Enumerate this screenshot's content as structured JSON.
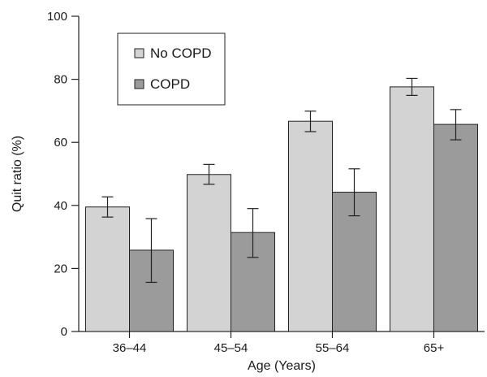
{
  "chart_data": {
    "type": "bar",
    "title": "",
    "xlabel": "Age (Years)",
    "ylabel": "Quit ratio (%)",
    "categories": [
      "36–44",
      "45–54",
      "55–64",
      "65+"
    ],
    "ylim": [
      0,
      100
    ],
    "yticks": [
      0,
      20,
      40,
      60,
      80,
      100
    ],
    "grid": false,
    "legend_position": "top-left",
    "series": [
      {
        "name": "No COPD",
        "color": "#d3d3d3",
        "values": [
          39.5,
          49.8,
          66.7,
          77.6
        ],
        "error_low": [
          36.3,
          46.7,
          63.4,
          74.9
        ],
        "error_high": [
          42.7,
          53.0,
          69.9,
          80.3
        ]
      },
      {
        "name": "COPD",
        "color": "#9b9b9b",
        "values": [
          25.8,
          31.4,
          44.2,
          65.7
        ],
        "error_low": [
          15.6,
          23.5,
          36.7,
          60.8
        ],
        "error_high": [
          35.8,
          39.0,
          51.6,
          70.4
        ]
      }
    ]
  }
}
